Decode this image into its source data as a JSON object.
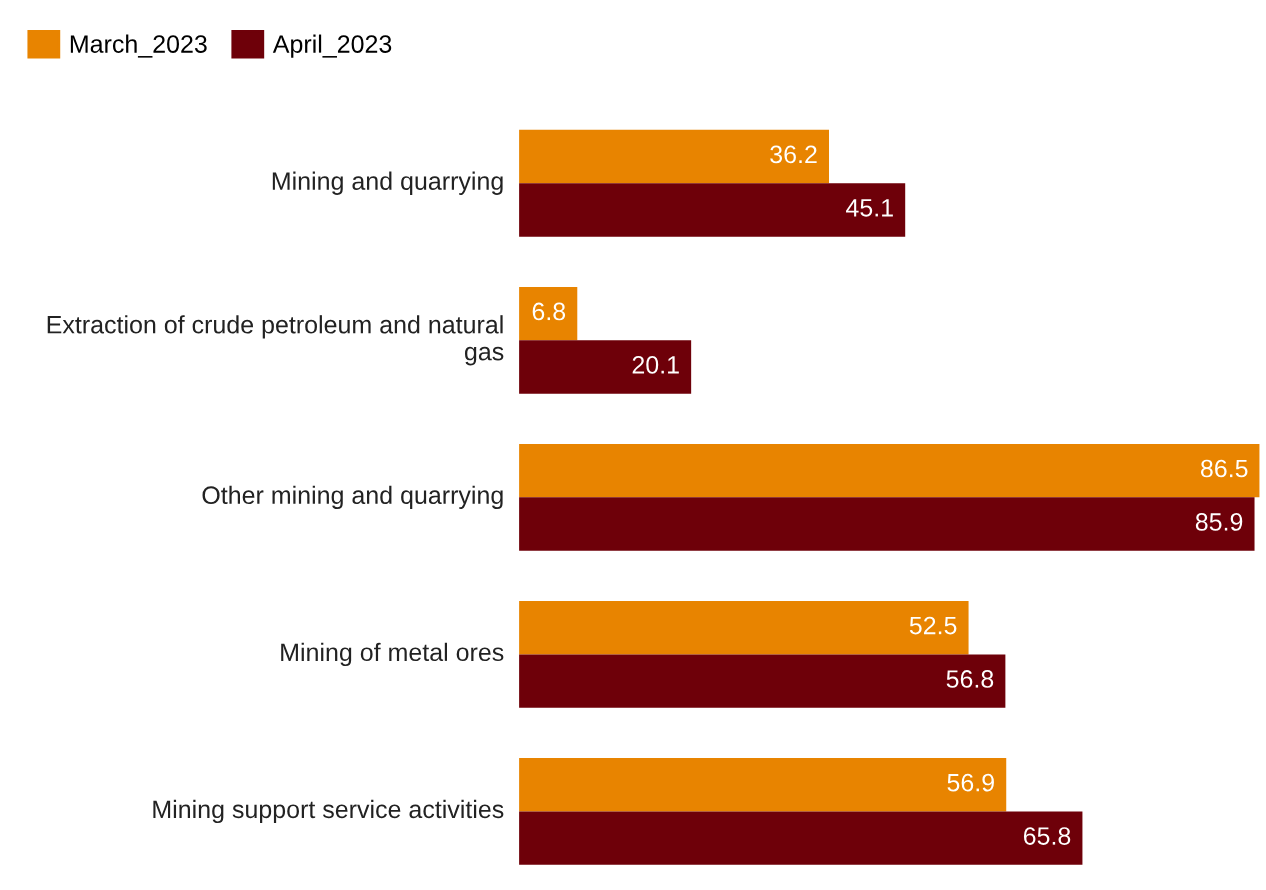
{
  "chart_data": {
    "type": "bar",
    "orientation": "horizontal",
    "data_labels": true,
    "legend": "top left",
    "categories": [
      "Mining and quarrying",
      "Extraction of crude petroleum and natural gas",
      "Other mining and quarrying",
      "Mining of metal ores",
      "Mining support service activities"
    ],
    "series": [
      {
        "name": "March_2023",
        "color": "#e88400",
        "values": [
          36.2,
          6.8,
          86.5,
          52.5,
          56.9
        ]
      },
      {
        "name": "April_2023",
        "color": "#6e0009",
        "values": [
          45.1,
          20.1,
          85.9,
          56.8,
          65.8
        ]
      }
    ]
  }
}
